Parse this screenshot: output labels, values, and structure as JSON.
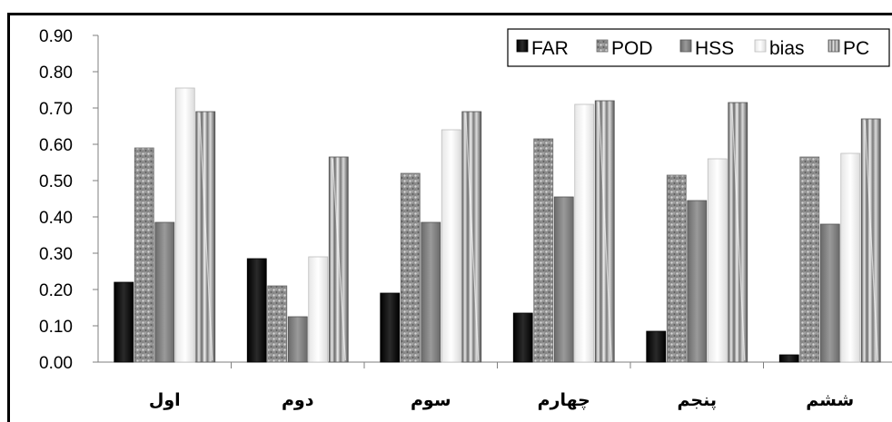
{
  "chart_data": {
    "type": "bar",
    "title": "",
    "xlabel": "",
    "ylabel": "",
    "ylim": [
      0,
      0.9
    ],
    "yticks": [
      "0.00",
      "0.10",
      "0.20",
      "0.30",
      "0.40",
      "0.50",
      "0.60",
      "0.70",
      "0.80",
      "0.90"
    ],
    "grid": false,
    "legend_position": "top-right",
    "categories": [
      "اول",
      "دوم",
      "سوم",
      "چهارم",
      "پنجم",
      "ششم"
    ],
    "series": [
      {
        "name": "FAR",
        "color": "#0a0a0a",
        "values": [
          0.22,
          0.285,
          0.19,
          0.135,
          0.085,
          0.02
        ]
      },
      {
        "name": "POD",
        "color": "#9a9a9a",
        "values": [
          0.59,
          0.21,
          0.52,
          0.615,
          0.515,
          0.565
        ]
      },
      {
        "name": "HSS",
        "color": "#7e7e7e",
        "values": [
          0.385,
          0.125,
          0.385,
          0.455,
          0.445,
          0.38
        ]
      },
      {
        "name": "bias",
        "color": "#f2f2f2",
        "values": [
          0.755,
          0.29,
          0.64,
          0.71,
          0.56,
          0.575
        ]
      },
      {
        "name": "PC",
        "color": "#a8a8a8",
        "values": [
          0.69,
          0.565,
          0.69,
          0.72,
          0.715,
          0.67
        ]
      }
    ]
  }
}
